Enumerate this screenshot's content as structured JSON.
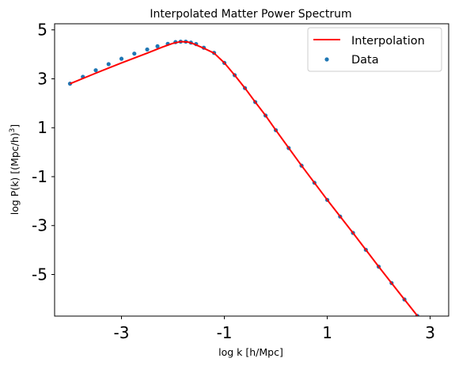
{
  "chart_data": {
    "type": "line",
    "title": "Interpolated Matter Power Spectrum",
    "xlabel": "log k [h/Mpc]",
    "ylabel": "log P(k) [(Mpc/h)",
    "ylabel_superscript": "3",
    "ylabel_suffix": "]",
    "xlim": [
      -4.3,
      3.36
    ],
    "ylim": [
      -6.7,
      5.25
    ],
    "x_ticks": [
      -3,
      -1,
      1,
      3
    ],
    "x_tick_labels": [
      "-3",
      "-1",
      "1",
      "3"
    ],
    "y_ticks": [
      -5,
      -3,
      -1,
      1,
      3,
      5
    ],
    "y_tick_labels": [
      "-5",
      "-3",
      "-1",
      "1",
      "3",
      "5"
    ],
    "grid": false,
    "legend": {
      "position": "top-right"
    },
    "series": [
      {
        "name": "Interpolation",
        "kind": "line",
        "color": "#ff0000",
        "x": [
          -4.0,
          -3.5,
          -3.0,
          -2.5,
          -2.2,
          -2.0,
          -1.85,
          -1.7,
          -1.6,
          -1.4,
          -1.2,
          -1.0,
          -0.8,
          -0.6,
          -0.4,
          -0.2,
          0.0,
          0.5,
          1.0,
          1.5,
          2.0,
          2.5,
          3.0
        ],
        "y": [
          2.8,
          3.23,
          3.65,
          4.05,
          4.3,
          4.45,
          4.52,
          4.5,
          4.43,
          4.25,
          4.05,
          3.65,
          3.15,
          2.62,
          2.05,
          1.5,
          0.9,
          -0.55,
          -1.95,
          -3.3,
          -4.68,
          -6.02,
          -7.35
        ]
      },
      {
        "name": "Data",
        "kind": "scatter",
        "color": "#1f77b4",
        "x": [
          -4.0,
          -3.75,
          -3.5,
          -3.25,
          -3.0,
          -2.75,
          -2.5,
          -2.3,
          -2.1,
          -1.95,
          -1.85,
          -1.75,
          -1.65,
          -1.55,
          -1.4,
          -1.2,
          -1.0,
          -0.8,
          -0.6,
          -0.4,
          -0.2,
          0.0,
          0.25,
          0.5,
          0.75,
          1.0,
          1.25,
          1.5,
          1.75,
          2.0,
          2.25,
          2.5,
          2.75,
          3.0
        ],
        "y": [
          2.8,
          3.08,
          3.35,
          3.6,
          3.82,
          4.03,
          4.2,
          4.33,
          4.43,
          4.5,
          4.52,
          4.52,
          4.48,
          4.42,
          4.27,
          4.06,
          3.65,
          3.15,
          2.62,
          2.05,
          1.5,
          0.9,
          0.17,
          -0.55,
          -1.25,
          -1.95,
          -2.63,
          -3.3,
          -3.99,
          -4.68,
          -5.35,
          -6.02,
          -6.69,
          -7.35
        ]
      }
    ]
  }
}
